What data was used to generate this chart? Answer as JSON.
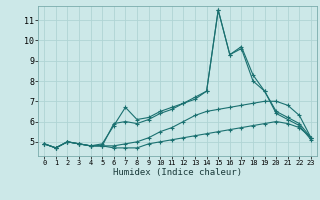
{
  "xlabel": "Humidex (Indice chaleur)",
  "bg_color": "#cce8e8",
  "grid_color": "#b0d4d4",
  "line_color": "#1a7070",
  "xlim": [
    -0.5,
    23.5
  ],
  "ylim": [
    4.3,
    11.7
  ],
  "yticks": [
    5,
    6,
    7,
    8,
    9,
    10,
    11
  ],
  "xticks": [
    0,
    1,
    2,
    3,
    4,
    5,
    6,
    7,
    8,
    9,
    10,
    11,
    12,
    13,
    14,
    15,
    16,
    17,
    18,
    19,
    20,
    21,
    22,
    23
  ],
  "series": [
    {
      "x": [
        0,
        1,
        2,
        3,
        4,
        5,
        6,
        7,
        8,
        9,
        10,
        11,
        12,
        13,
        14,
        15,
        16,
        17,
        18,
        19,
        20,
        21,
        22,
        23
      ],
      "y": [
        4.9,
        4.7,
        5.0,
        4.9,
        4.8,
        4.8,
        4.7,
        4.7,
        4.7,
        4.9,
        5.0,
        5.1,
        5.2,
        5.3,
        5.4,
        5.5,
        5.6,
        5.7,
        5.8,
        5.9,
        6.0,
        5.9,
        5.7,
        5.2
      ]
    },
    {
      "x": [
        0,
        1,
        2,
        3,
        4,
        5,
        6,
        7,
        8,
        9,
        10,
        11,
        12,
        13,
        14,
        15,
        16,
        17,
        18,
        19,
        20,
        21,
        22,
        23
      ],
      "y": [
        4.9,
        4.7,
        5.0,
        4.9,
        4.8,
        4.8,
        4.8,
        4.9,
        5.0,
        5.2,
        5.5,
        5.7,
        6.0,
        6.3,
        6.5,
        6.6,
        6.7,
        6.8,
        6.9,
        7.0,
        7.0,
        6.8,
        6.3,
        5.2
      ]
    },
    {
      "x": [
        0,
        1,
        2,
        3,
        4,
        5,
        6,
        7,
        8,
        9,
        10,
        11,
        12,
        13,
        14,
        15,
        16,
        17,
        18,
        19,
        20,
        21,
        22,
        23
      ],
      "y": [
        4.9,
        4.7,
        5.0,
        4.9,
        4.8,
        4.9,
        5.8,
        6.7,
        6.1,
        6.2,
        6.5,
        6.7,
        6.9,
        7.2,
        7.5,
        11.5,
        9.3,
        9.7,
        8.3,
        7.5,
        6.5,
        6.2,
        5.9,
        5.2
      ]
    },
    {
      "x": [
        0,
        1,
        2,
        3,
        4,
        5,
        6,
        7,
        8,
        9,
        10,
        11,
        12,
        13,
        14,
        15,
        16,
        17,
        18,
        19,
        20,
        21,
        22,
        23
      ],
      "y": [
        4.9,
        4.7,
        5.0,
        4.9,
        4.8,
        4.8,
        5.9,
        6.0,
        5.9,
        6.1,
        6.4,
        6.6,
        6.9,
        7.1,
        7.5,
        11.5,
        9.3,
        9.6,
        8.0,
        7.5,
        6.4,
        6.1,
        5.8,
        5.1
      ]
    }
  ]
}
